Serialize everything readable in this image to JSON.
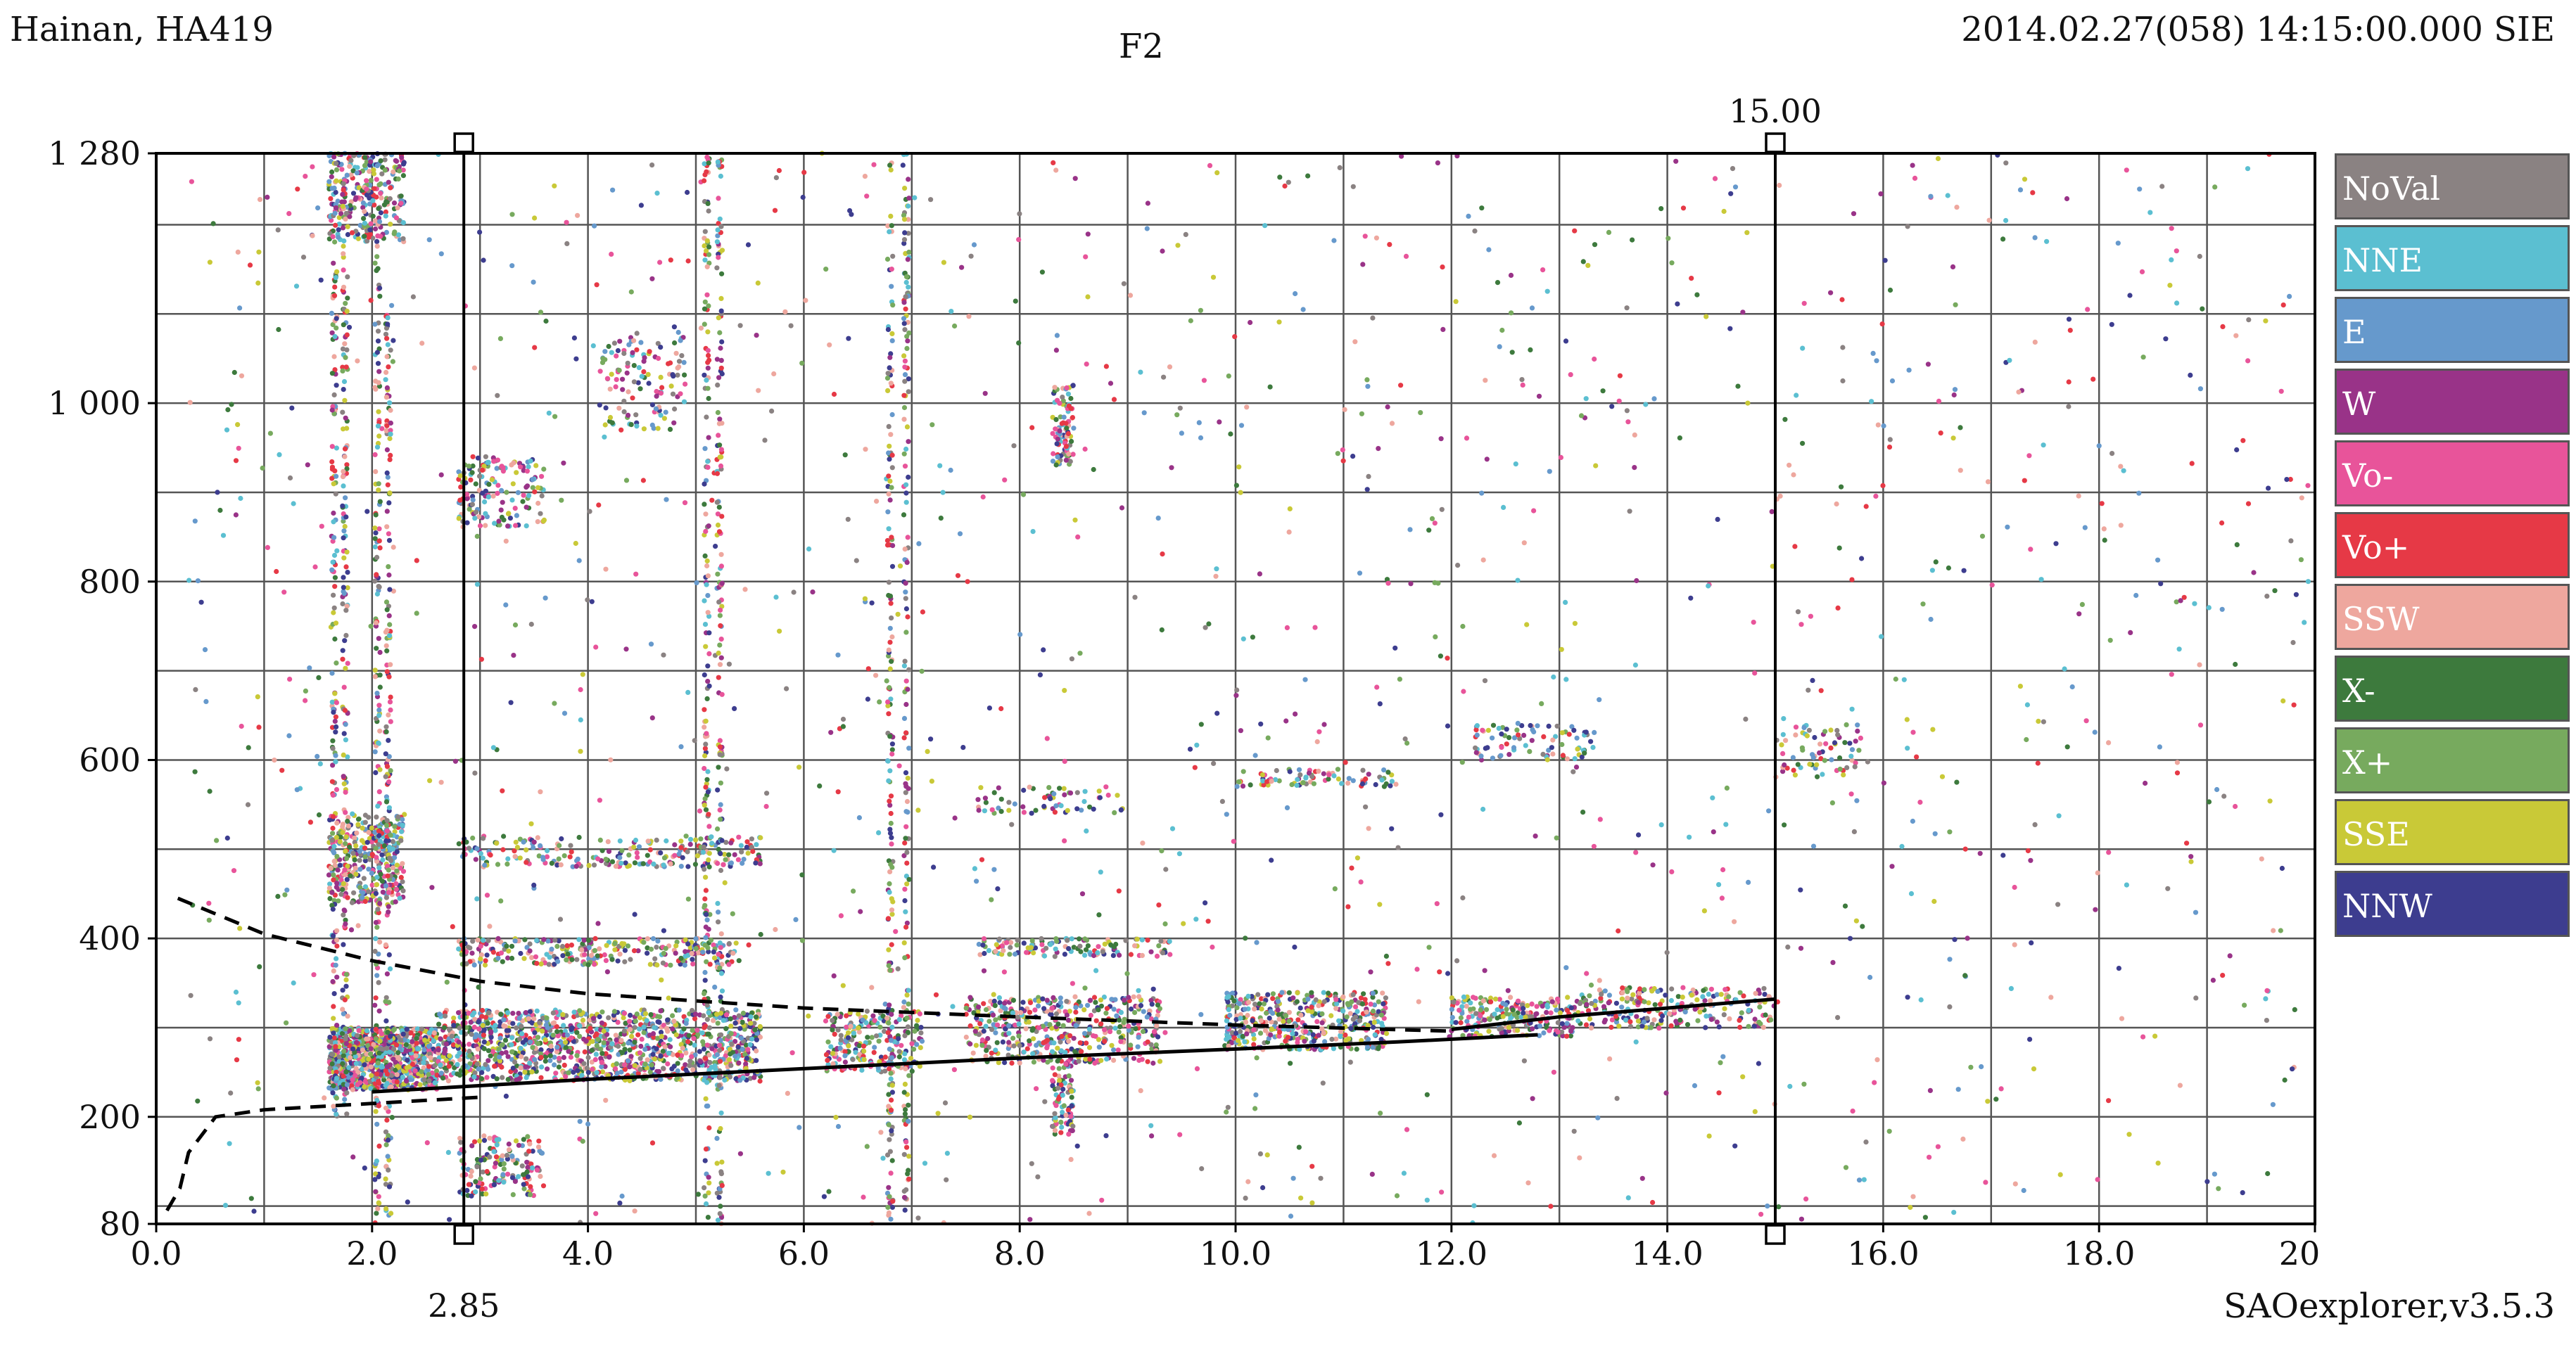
{
  "header": {
    "station": "Hainan, HA419",
    "layer": "F2",
    "timestamp": "2014.02.27(058) 14:15:00.000 SIE",
    "software": "SAOexplorer,v3.5.3"
  },
  "legend": [
    {
      "label": "NoVal",
      "color": "#8a8282"
    },
    {
      "label": "NNE",
      "color": "#5bbfd1"
    },
    {
      "label": "E",
      "color": "#6699cc"
    },
    {
      "label": "W",
      "color": "#993388"
    },
    {
      "label": "Vo-",
      "color": "#e8549a"
    },
    {
      "label": "Vo+",
      "color": "#e63946"
    },
    {
      "label": "SSW",
      "color": "#eea79e"
    },
    {
      "label": "X-",
      "color": "#3d7a3d"
    },
    {
      "label": "X+",
      "color": "#77aa5e"
    },
    {
      "label": "SSE",
      "color": "#c9c937"
    },
    {
      "label": "NNW",
      "color": "#3d3d8f"
    }
  ],
  "chart_data": {
    "type": "scatter",
    "title": "F2",
    "xlabel": "",
    "ylabel": "",
    "xlim": [
      0,
      20
    ],
    "ylim": [
      80,
      1280
    ],
    "x_ticks": [
      {
        "value": 0,
        "label": "0.0"
      },
      {
        "value": 2,
        "label": "2.0"
      },
      {
        "value": 4,
        "label": "4.0"
      },
      {
        "value": 6,
        "label": "6.0"
      },
      {
        "value": 8,
        "label": "8.0"
      },
      {
        "value": 10,
        "label": "10.0"
      },
      {
        "value": 12,
        "label": "12.0"
      },
      {
        "value": 14,
        "label": "14.0"
      },
      {
        "value": 16,
        "label": "16.0"
      },
      {
        "value": 18,
        "label": "18.0"
      },
      {
        "value": 20,
        "label": "20.0"
      }
    ],
    "y_ticks": [
      {
        "value": 80,
        "label": "80"
      },
      {
        "value": 200,
        "label": "200"
      },
      {
        "value": 400,
        "label": "400"
      },
      {
        "value": 600,
        "label": "600"
      },
      {
        "value": 800,
        "label": "800"
      },
      {
        "value": 1000,
        "label": "1 000"
      },
      {
        "value": 1280,
        "label": "1 280"
      }
    ],
    "grid": true,
    "legend_position": "right",
    "markers": [
      {
        "name": "foF2",
        "x": 2.85,
        "label": "2.85",
        "label_position": "bottom"
      },
      {
        "name": "MUF",
        "x": 15.0,
        "label": "15.00",
        "label_position": "top"
      }
    ],
    "trace_lines": [
      {
        "style": "solid",
        "points": [
          [
            2.0,
            228
          ],
          [
            4.0,
            242
          ],
          [
            6.0,
            254
          ],
          [
            8.0,
            266
          ],
          [
            10.0,
            276
          ],
          [
            11.5,
            284
          ],
          [
            12.8,
            292
          ]
        ]
      },
      {
        "style": "solid",
        "points": [
          [
            12.0,
            298
          ],
          [
            13.0,
            312
          ],
          [
            14.0,
            322
          ],
          [
            15.0,
            332
          ]
        ]
      },
      {
        "style": "dashed",
        "points": [
          [
            0.1,
            95
          ],
          [
            0.22,
            120
          ],
          [
            0.3,
            160
          ],
          [
            0.55,
            200
          ],
          [
            1.0,
            208
          ],
          [
            2.0,
            215
          ],
          [
            3.0,
            222
          ]
        ]
      },
      {
        "style": "dashed",
        "points": [
          [
            0.2,
            445
          ],
          [
            1.0,
            405
          ],
          [
            2.0,
            375
          ],
          [
            3.0,
            352
          ],
          [
            4.0,
            338
          ],
          [
            6.0,
            322
          ],
          [
            8.0,
            312
          ],
          [
            10.0,
            303
          ],
          [
            12.0,
            296
          ]
        ]
      }
    ],
    "point_clusters": [
      {
        "x": [
          1.6,
          2.6
        ],
        "y": [
          230,
          300
        ],
        "density": 900
      },
      {
        "x": [
          2.6,
          5.6
        ],
        "y": [
          240,
          320
        ],
        "density": 1200
      },
      {
        "x": [
          6.2,
          7.1
        ],
        "y": [
          250,
          320
        ],
        "density": 220
      },
      {
        "x": [
          7.5,
          9.3
        ],
        "y": [
          260,
          335
        ],
        "density": 420
      },
      {
        "x": [
          9.9,
          11.4
        ],
        "y": [
          275,
          340
        ],
        "density": 420
      },
      {
        "x": [
          12.0,
          13.2
        ],
        "y": [
          290,
          335
        ],
        "density": 220
      },
      {
        "x": [
          13.2,
          15.0
        ],
        "y": [
          300,
          345
        ],
        "density": 220
      },
      {
        "x": [
          1.6,
          2.3
        ],
        "y": [
          440,
          540
        ],
        "density": 320
      },
      {
        "x": [
          1.6,
          2.3
        ],
        "y": [
          1180,
          1280
        ],
        "density": 260
      },
      {
        "x": [
          2.8,
          5.4
        ],
        "y": [
          370,
          400
        ],
        "density": 260
      },
      {
        "x": [
          2.8,
          5.6
        ],
        "y": [
          480,
          515
        ],
        "density": 220
      },
      {
        "x": [
          2.8,
          3.6
        ],
        "y": [
          860,
          940
        ],
        "density": 150
      },
      {
        "x": [
          2.8,
          3.6
        ],
        "y": [
          110,
          180
        ],
        "density": 150
      },
      {
        "x": [
          4.1,
          4.9
        ],
        "y": [
          970,
          1080
        ],
        "density": 120
      },
      {
        "x": [
          8.3,
          8.5
        ],
        "y": [
          930,
          1020
        ],
        "density": 90
      },
      {
        "x": [
          8.3,
          8.5
        ],
        "y": [
          180,
          260
        ],
        "density": 80
      },
      {
        "x": [
          7.6,
          9.4
        ],
        "y": [
          380,
          400
        ],
        "density": 120
      },
      {
        "x": [
          10.0,
          11.5
        ],
        "y": [
          570,
          590
        ],
        "density": 80
      },
      {
        "x": [
          12.2,
          13.3
        ],
        "y": [
          600,
          640
        ],
        "density": 80
      },
      {
        "x": [
          7.6,
          9.0
        ],
        "y": [
          540,
          570
        ],
        "density": 60
      },
      {
        "x": [
          15.0,
          15.8
        ],
        "y": [
          580,
          640
        ],
        "density": 70
      },
      {
        "x": [
          0.3,
          20.0
        ],
        "y": [
          80,
          1280
        ],
        "density": 1300
      }
    ],
    "vertical_streaks": [
      {
        "x": 1.65,
        "y": [
          200,
          1280
        ]
      },
      {
        "x": 1.75,
        "y": [
          200,
          1280
        ]
      },
      {
        "x": 2.05,
        "y": [
          80,
          1200
        ]
      },
      {
        "x": 2.15,
        "y": [
          80,
          1100
        ]
      },
      {
        "x": 5.1,
        "y": [
          80,
          1280
        ]
      },
      {
        "x": 5.22,
        "y": [
          80,
          1280
        ]
      },
      {
        "x": 6.8,
        "y": [
          80,
          1280
        ]
      },
      {
        "x": 6.95,
        "y": [
          80,
          1280
        ]
      }
    ]
  }
}
